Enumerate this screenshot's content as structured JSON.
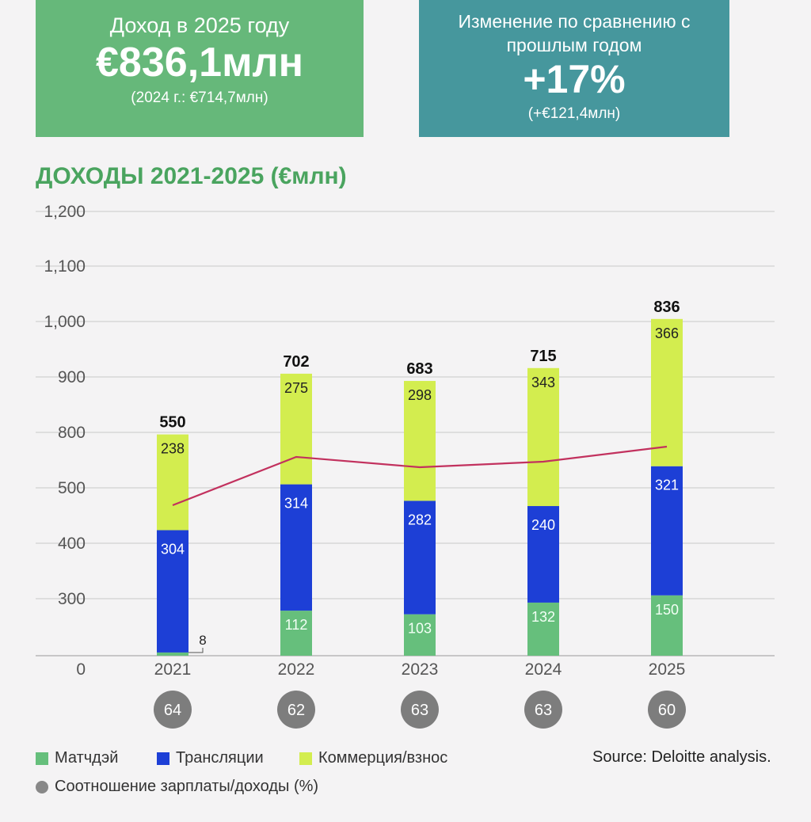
{
  "cards": {
    "left": {
      "label": "Доход в 2025 году",
      "value": "€836,1млн",
      "sub": "(2024 г.: €714,7млн)",
      "color": "#66b87a"
    },
    "right": {
      "label": "Изменение по сравнению с прошлым годом",
      "value": "+17%",
      "sub": "(+€121,4млн)",
      "color": "#46979d"
    }
  },
  "chart_title": "ДОХОДЫ 2021-2025 (€млн)",
  "chart_data": {
    "type": "bar",
    "stacked": true,
    "categories": [
      "2021",
      "2022",
      "2023",
      "2024",
      "2025"
    ],
    "series": [
      {
        "name": "Матчдэй",
        "color": "#66bf7c",
        "values": [
          8,
          112,
          103,
          132,
          150
        ]
      },
      {
        "name": "Трансляции",
        "color": "#1d3fd6",
        "values": [
          304,
          314,
          282,
          240,
          321
        ]
      },
      {
        "name": "Коммерция/взнос",
        "color": "#d3ed4f",
        "values": [
          238,
          275,
          298,
          343,
          366
        ]
      }
    ],
    "totals": [
      550,
      702,
      683,
      715,
      836
    ],
    "y_tick_labels": [
      "0",
      "300",
      "400",
      "500",
      "800",
      "900",
      "1,000",
      "1,100",
      "1,200"
    ],
    "line_series": {
      "name": "Соотношение зарплаты/доходы (%)",
      "color": "#c2315e",
      "values": [
        64,
        62,
        63,
        63,
        60
      ]
    },
    "wage_ratio_labels": [
      "64",
      "62",
      "63",
      "63",
      "60"
    ],
    "small_label_2021_matchday": "8"
  },
  "legend": {
    "matchday": "Матчдэй",
    "broadcast": "Трансляции",
    "commercial": "Коммерция/взнос",
    "ratio": "Соотношение зарплаты/доходы (%)"
  },
  "source": "Source: Deloitte analysis."
}
